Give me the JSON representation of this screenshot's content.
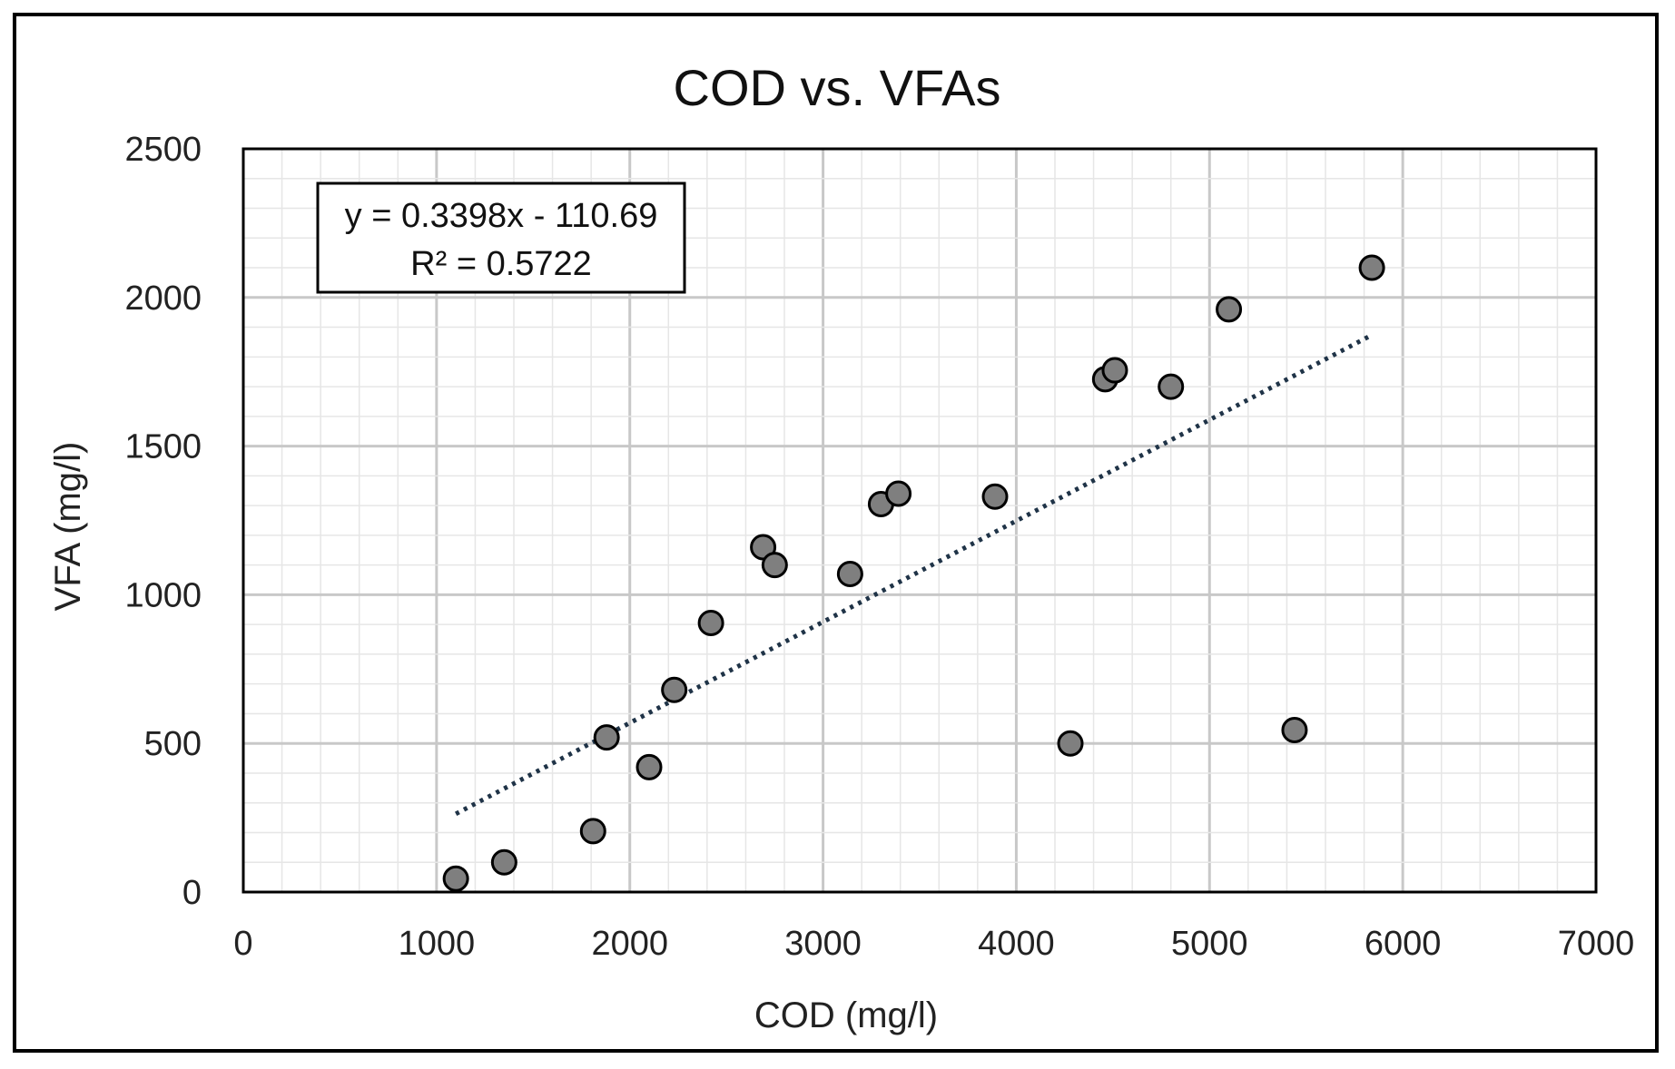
{
  "chart_data": {
    "type": "scatter",
    "title": "COD vs. VFAs",
    "xlabel": "COD (mg/l)",
    "ylabel": "VFA (mg/l)",
    "xlim": [
      0,
      7000
    ],
    "ylim": [
      0,
      2500
    ],
    "x_ticks": [
      "0",
      "1000",
      "2000",
      "3000",
      "4000",
      "5000",
      "6000",
      "7000"
    ],
    "y_ticks": [
      "0",
      "500",
      "1000",
      "1500",
      "2000",
      "2500"
    ],
    "grid": true,
    "legend": "none",
    "marker_color": "#7f7f7f",
    "trendline_color": "#1f3347",
    "series": [
      {
        "points": [
          {
            "x": 1100,
            "y": 45
          },
          {
            "x": 1350,
            "y": 100
          },
          {
            "x": 1810,
            "y": 205
          },
          {
            "x": 1880,
            "y": 520
          },
          {
            "x": 2100,
            "y": 420
          },
          {
            "x": 2230,
            "y": 680
          },
          {
            "x": 2420,
            "y": 905
          },
          {
            "x": 2690,
            "y": 1160
          },
          {
            "x": 2750,
            "y": 1100
          },
          {
            "x": 3140,
            "y": 1070
          },
          {
            "x": 3300,
            "y": 1305
          },
          {
            "x": 3390,
            "y": 1340
          },
          {
            "x": 3890,
            "y": 1330
          },
          {
            "x": 4280,
            "y": 500
          },
          {
            "x": 4460,
            "y": 1725
          },
          {
            "x": 4510,
            "y": 1755
          },
          {
            "x": 4800,
            "y": 1700
          },
          {
            "x": 5100,
            "y": 1960
          },
          {
            "x": 5440,
            "y": 545
          },
          {
            "x": 5840,
            "y": 2100
          }
        ]
      }
    ],
    "trendline": {
      "type": "linear",
      "slope": 0.3398,
      "intercept": -110.69,
      "x_range": [
        1100,
        5840
      ],
      "equation": "y = 0.3398x - 110.69",
      "r2": "R² = 0.5722"
    }
  }
}
